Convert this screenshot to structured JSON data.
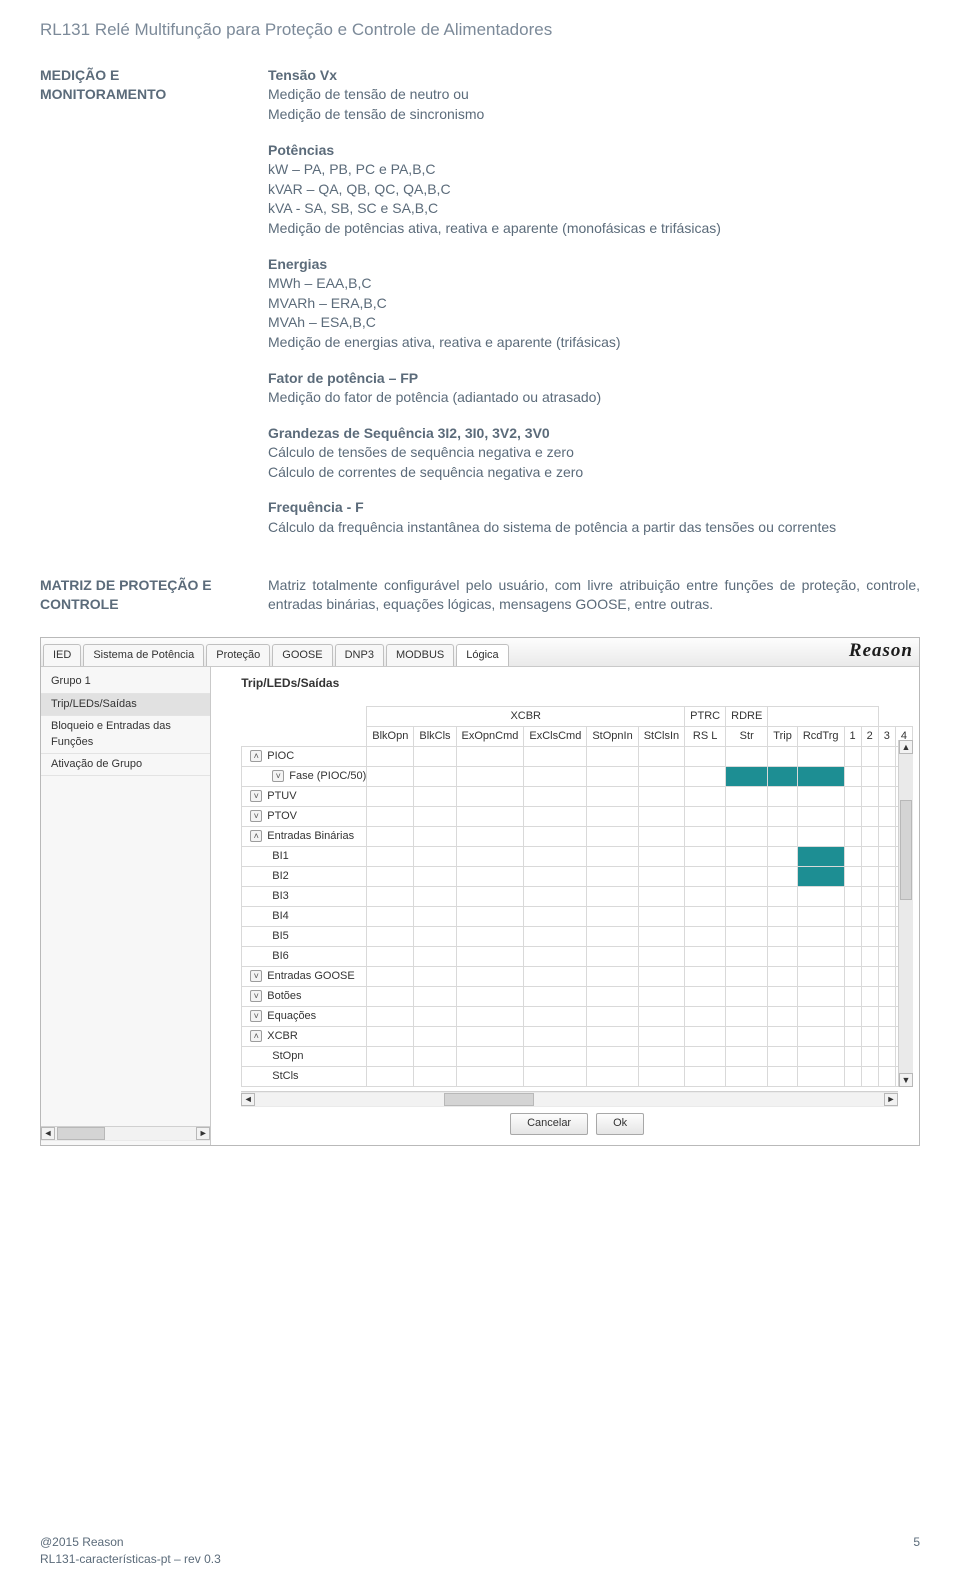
{
  "doc": {
    "title": "RL131 Relé Multifunção para Proteção e Controle de Alimentadores",
    "footer_left1": "@2015 Reason",
    "footer_left2": "RL131-características-pt – rev 0.3",
    "page_no": "5"
  },
  "section1": {
    "heading_l1": "MEDIÇÃO E",
    "heading_l2": "MONITORAMENTO",
    "b1_h": "Tensão Vx",
    "b1_l1": "Medição de tensão de neutro ou",
    "b1_l2": "Medição de tensão de sincronismo",
    "b2_h": "Potências",
    "b2_l1": "kW – PA, PB, PC e PA,B,C",
    "b2_l2": "kVAR – QA, QB, QC, QA,B,C",
    "b2_l3": "kVA  - SA, SB, SC e SA,B,C",
    "b2_l4": "Medição de potências ativa, reativa e aparente (monofásicas e trifásicas)",
    "b3_h": "Energias",
    "b3_l1": "MWh – EAA,B,C",
    "b3_l2": "MVARh – ERA,B,C",
    "b3_l3": "MVAh – ESA,B,C",
    "b3_l4": "Medição de energias ativa, reativa e aparente (trifásicas)",
    "b4_h": "Fator de potência – FP",
    "b4_l1": "Medição do fator de potência (adiantado ou atrasado)",
    "b5_h": "Grandezas de Sequência 3I2, 3I0, 3V2, 3V0",
    "b5_l1": "Cálculo de tensões de sequência negativa e zero",
    "b5_l2": "Cálculo de correntes de sequência negativa e zero",
    "b6_h": "Frequência - F",
    "b6_l1": "Cálculo da frequência instantânea do sistema de potência a partir das tensões ou correntes"
  },
  "section2": {
    "heading_l1": "MATRIZ DE PROTEÇÃO E",
    "heading_l2": "CONTROLE",
    "body": "Matriz totalmente configurável pelo usuário, com livre atribuição entre funções de proteção, controle, entradas binárias, equações lógicas, mensagens GOOSE, entre outras."
  },
  "app": {
    "tabs": [
      "IED",
      "Sistema de Potência",
      "Proteção",
      "GOOSE",
      "DNP3",
      "MODBUS",
      "Lógica"
    ],
    "active_tab": 6,
    "logo": "Reason",
    "sidebar": {
      "items": [
        {
          "label": "Grupo 1",
          "active": false
        },
        {
          "label": "Trip/LEDs/Saídas",
          "active": true
        },
        {
          "label": "Bloqueio e Entradas das Funções",
          "active": false
        },
        {
          "label": "Ativação de Grupo",
          "active": false
        }
      ]
    },
    "panel_title": "Trip/LEDs/Saídas",
    "col_groups": [
      {
        "label": "XCBR",
        "span": 6
      },
      {
        "label": "PTRC",
        "span": 1
      },
      {
        "label": "RDRE",
        "span": 1
      },
      {
        "label": "",
        "span": 4
      }
    ],
    "columns": [
      "BlkOpn",
      "BlkCls",
      "ExOpnCmd",
      "ExClsCmd",
      "StOpnIn",
      "StClsIn",
      "RS L",
      "Str",
      "Trip",
      "RcdTrg",
      "1",
      "2",
      "3",
      "4"
    ],
    "rows": [
      {
        "ind": 0,
        "chev": "up",
        "label": "PIOC",
        "cells": [
          0,
          0,
          0,
          0,
          0,
          0,
          0,
          0,
          0,
          0,
          0,
          0,
          0,
          0
        ]
      },
      {
        "ind": 1,
        "chev": "dn",
        "label": "Fase (PIOC/50)",
        "cells": [
          0,
          0,
          0,
          0,
          0,
          0,
          0,
          1,
          1,
          1,
          0,
          0,
          0,
          0
        ]
      },
      {
        "ind": 0,
        "chev": "dn",
        "label": "PTUV",
        "cells": [
          0,
          0,
          0,
          0,
          0,
          0,
          0,
          0,
          0,
          0,
          0,
          0,
          0,
          0
        ]
      },
      {
        "ind": 0,
        "chev": "dn",
        "label": "PTOV",
        "cells": [
          0,
          0,
          0,
          0,
          0,
          0,
          0,
          0,
          0,
          0,
          0,
          0,
          0,
          0
        ]
      },
      {
        "ind": 0,
        "chev": "up",
        "label": "Entradas Binárias",
        "cells": [
          0,
          0,
          0,
          0,
          0,
          0,
          0,
          0,
          0,
          0,
          0,
          0,
          0,
          0
        ]
      },
      {
        "ind": 1,
        "chev": "",
        "label": "BI1",
        "cells": [
          0,
          0,
          0,
          0,
          0,
          0,
          0,
          0,
          0,
          1,
          0,
          0,
          0,
          0
        ]
      },
      {
        "ind": 1,
        "chev": "",
        "label": "BI2",
        "cells": [
          0,
          0,
          0,
          0,
          0,
          0,
          0,
          0,
          0,
          1,
          0,
          0,
          0,
          0
        ]
      },
      {
        "ind": 1,
        "chev": "",
        "label": "BI3",
        "cells": [
          0,
          0,
          0,
          0,
          0,
          0,
          0,
          0,
          0,
          0,
          0,
          0,
          0,
          0
        ]
      },
      {
        "ind": 1,
        "chev": "",
        "label": "BI4",
        "cells": [
          0,
          0,
          0,
          0,
          0,
          0,
          0,
          0,
          0,
          0,
          0,
          0,
          0,
          0
        ]
      },
      {
        "ind": 1,
        "chev": "",
        "label": "BI5",
        "cells": [
          0,
          0,
          0,
          0,
          0,
          0,
          0,
          0,
          0,
          0,
          0,
          0,
          0,
          0
        ]
      },
      {
        "ind": 1,
        "chev": "",
        "label": "BI6",
        "cells": [
          0,
          0,
          0,
          0,
          0,
          0,
          0,
          0,
          0,
          0,
          0,
          0,
          0,
          0
        ]
      },
      {
        "ind": 0,
        "chev": "dn",
        "label": "Entradas GOOSE",
        "cells": [
          0,
          0,
          0,
          0,
          0,
          0,
          0,
          0,
          0,
          0,
          0,
          0,
          0,
          0
        ]
      },
      {
        "ind": 0,
        "chev": "dn",
        "label": "Botões",
        "cells": [
          0,
          0,
          0,
          0,
          0,
          0,
          0,
          0,
          0,
          0,
          0,
          0,
          0,
          0
        ]
      },
      {
        "ind": 0,
        "chev": "dn",
        "label": "Equações",
        "cells": [
          0,
          0,
          0,
          0,
          0,
          0,
          0,
          0,
          0,
          0,
          0,
          0,
          0,
          0
        ]
      },
      {
        "ind": 0,
        "chev": "up",
        "label": "XCBR",
        "cells": [
          0,
          0,
          0,
          0,
          0,
          0,
          0,
          0,
          0,
          0,
          0,
          0,
          0,
          0
        ]
      },
      {
        "ind": 1,
        "chev": "",
        "label": "StOpn",
        "cells": [
          0,
          0,
          0,
          0,
          0,
          0,
          0,
          0,
          0,
          0,
          0,
          0,
          0,
          0
        ]
      },
      {
        "ind": 1,
        "chev": "",
        "label": "StCls",
        "cells": [
          0,
          0,
          0,
          0,
          0,
          0,
          0,
          0,
          0,
          0,
          0,
          0,
          0,
          0
        ]
      }
    ],
    "buttons": {
      "cancel": "Cancelar",
      "ok": "Ok"
    },
    "colors": {
      "filled": "#1d8e93",
      "border": "#d9d9d9",
      "ui_bg": "#f2f2f2"
    }
  }
}
